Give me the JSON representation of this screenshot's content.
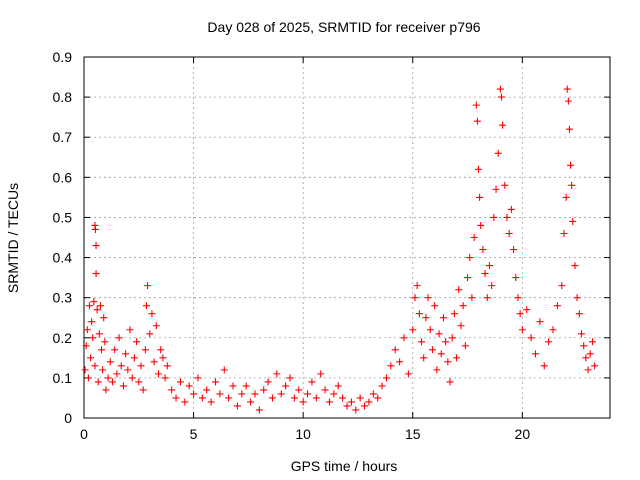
{
  "chart_data": {
    "type": "scatter",
    "title": "Day 028 of 2025, SRMTID for receiver p796",
    "xlabel": "GPS time / hours",
    "ylabel": "SRMTID / TECUs",
    "xlim": [
      0,
      24
    ],
    "ylim": [
      0,
      0.9
    ],
    "x_ticks": [
      0,
      5,
      10,
      15,
      20
    ],
    "x_tick_labels": [
      "0",
      "5",
      "10",
      "15",
      "20"
    ],
    "y_ticks": [
      0,
      0.1,
      0.2,
      0.3,
      0.4,
      0.5,
      0.6,
      0.7,
      0.8,
      0.9
    ],
    "y_tick_labels": [
      "0",
      "0.1",
      "0.2",
      "0.3",
      "0.4",
      "0.5",
      "0.6",
      "0.7",
      "0.8",
      "0.9"
    ],
    "grid": true,
    "marker": "+",
    "color": "#ff0000",
    "series": [
      {
        "name": "SRMTID",
        "points": [
          [
            0.05,
            0.12
          ],
          [
            0.1,
            0.18
          ],
          [
            0.15,
            0.22
          ],
          [
            0.2,
            0.1
          ],
          [
            0.25,
            0.28
          ],
          [
            0.3,
            0.15
          ],
          [
            0.35,
            0.24
          ],
          [
            0.4,
            0.2
          ],
          [
            0.45,
            0.29
          ],
          [
            0.5,
            0.13
          ],
          [
            0.5,
            0.48
          ],
          [
            0.52,
            0.47
          ],
          [
            0.55,
            0.43
          ],
          [
            0.55,
            0.36
          ],
          [
            0.6,
            0.27
          ],
          [
            0.65,
            0.09
          ],
          [
            0.7,
            0.21
          ],
          [
            0.75,
            0.28
          ],
          [
            0.8,
            0.17
          ],
          [
            0.85,
            0.12
          ],
          [
            0.9,
            0.25
          ],
          [
            0.95,
            0.19
          ],
          [
            1.0,
            0.07
          ],
          [
            1.1,
            0.1
          ],
          [
            1.2,
            0.14
          ],
          [
            1.3,
            0.09
          ],
          [
            1.4,
            0.17
          ],
          [
            1.5,
            0.11
          ],
          [
            1.6,
            0.2
          ],
          [
            1.7,
            0.13
          ],
          [
            1.8,
            0.08
          ],
          [
            1.9,
            0.16
          ],
          [
            2.0,
            0.12
          ],
          [
            2.1,
            0.22
          ],
          [
            2.2,
            0.1
          ],
          [
            2.3,
            0.15
          ],
          [
            2.4,
            0.19
          ],
          [
            2.5,
            0.09
          ],
          [
            2.6,
            0.13
          ],
          [
            2.7,
            0.07
          ],
          [
            2.8,
            0.17
          ],
          [
            2.85,
            0.28
          ],
          [
            2.9,
            0.33
          ],
          [
            3.0,
            0.21
          ],
          [
            3.1,
            0.26
          ],
          [
            3.2,
            0.14
          ],
          [
            3.3,
            0.23
          ],
          [
            3.4,
            0.11
          ],
          [
            3.5,
            0.17
          ],
          [
            3.6,
            0.15
          ],
          [
            3.7,
            0.1
          ],
          [
            3.8,
            0.13
          ],
          [
            4.0,
            0.07
          ],
          [
            4.2,
            0.05
          ],
          [
            4.4,
            0.09
          ],
          [
            4.6,
            0.04
          ],
          [
            4.8,
            0.08
          ],
          [
            5.0,
            0.06
          ],
          [
            5.2,
            0.1
          ],
          [
            5.4,
            0.05
          ],
          [
            5.6,
            0.07
          ],
          [
            5.8,
            0.04
          ],
          [
            6.0,
            0.09
          ],
          [
            6.2,
            0.06
          ],
          [
            6.4,
            0.12
          ],
          [
            6.6,
            0.05
          ],
          [
            6.8,
            0.08
          ],
          [
            7.0,
            0.03
          ],
          [
            7.2,
            0.06
          ],
          [
            7.4,
            0.08
          ],
          [
            7.6,
            0.04
          ],
          [
            7.8,
            0.06
          ],
          [
            8.0,
            0.02
          ],
          [
            8.2,
            0.07
          ],
          [
            8.4,
            0.09
          ],
          [
            8.6,
            0.05
          ],
          [
            8.8,
            0.11
          ],
          [
            9.0,
            0.06
          ],
          [
            9.2,
            0.08
          ],
          [
            9.4,
            0.1
          ],
          [
            9.6,
            0.05
          ],
          [
            9.8,
            0.07
          ],
          [
            10.0,
            0.04
          ],
          [
            10.2,
            0.06
          ],
          [
            10.4,
            0.09
          ],
          [
            10.6,
            0.05
          ],
          [
            10.8,
            0.11
          ],
          [
            11.0,
            0.07
          ],
          [
            11.2,
            0.04
          ],
          [
            11.4,
            0.06
          ],
          [
            11.6,
            0.08
          ],
          [
            11.8,
            0.05
          ],
          [
            12.0,
            0.03
          ],
          [
            12.2,
            0.04
          ],
          [
            12.4,
            0.02
          ],
          [
            12.6,
            0.05
          ],
          [
            12.8,
            0.03
          ],
          [
            13.0,
            0.04
          ],
          [
            13.2,
            0.06
          ],
          [
            13.4,
            0.05
          ],
          [
            13.6,
            0.08
          ],
          [
            13.8,
            0.1
          ],
          [
            14.0,
            0.13
          ],
          [
            14.2,
            0.17
          ],
          [
            14.4,
            0.14
          ],
          [
            14.6,
            0.2
          ],
          [
            14.8,
            0.11
          ],
          [
            15.0,
            0.22
          ],
          [
            15.1,
            0.3
          ],
          [
            15.2,
            0.33
          ],
          [
            15.3,
            0.26
          ],
          [
            15.4,
            0.19
          ],
          [
            15.5,
            0.15
          ],
          [
            15.6,
            0.25
          ],
          [
            15.7,
            0.3
          ],
          [
            15.8,
            0.22
          ],
          [
            15.9,
            0.17
          ],
          [
            16.0,
            0.28
          ],
          [
            16.1,
            0.12
          ],
          [
            16.2,
            0.21
          ],
          [
            16.3,
            0.16
          ],
          [
            16.4,
            0.25
          ],
          [
            16.5,
            0.19
          ],
          [
            16.6,
            0.14
          ],
          [
            16.7,
            0.09
          ],
          [
            16.8,
            0.2
          ],
          [
            16.9,
            0.26
          ],
          [
            17.0,
            0.15
          ],
          [
            17.1,
            0.32
          ],
          [
            17.2,
            0.23
          ],
          [
            17.3,
            0.28
          ],
          [
            17.4,
            0.18
          ],
          [
            17.5,
            0.35
          ],
          [
            17.6,
            0.4
          ],
          [
            17.7,
            0.3
          ],
          [
            17.8,
            0.45
          ],
          [
            17.9,
            0.78
          ],
          [
            17.95,
            0.74
          ],
          [
            18.0,
            0.62
          ],
          [
            18.05,
            0.55
          ],
          [
            18.1,
            0.48
          ],
          [
            18.2,
            0.42
          ],
          [
            18.3,
            0.36
          ],
          [
            18.4,
            0.3
          ],
          [
            18.5,
            0.38
          ],
          [
            18.6,
            0.33
          ],
          [
            18.7,
            0.5
          ],
          [
            18.8,
            0.57
          ],
          [
            18.9,
            0.66
          ],
          [
            19.0,
            0.82
          ],
          [
            19.05,
            0.8
          ],
          [
            19.1,
            0.73
          ],
          [
            19.2,
            0.58
          ],
          [
            19.3,
            0.5
          ],
          [
            19.4,
            0.46
          ],
          [
            19.5,
            0.52
          ],
          [
            19.6,
            0.42
          ],
          [
            19.7,
            0.35
          ],
          [
            19.8,
            0.3
          ],
          [
            19.9,
            0.26
          ],
          [
            20.0,
            0.22
          ],
          [
            20.2,
            0.27
          ],
          [
            20.4,
            0.2
          ],
          [
            20.6,
            0.16
          ],
          [
            20.8,
            0.24
          ],
          [
            21.0,
            0.13
          ],
          [
            21.2,
            0.19
          ],
          [
            21.4,
            0.22
          ],
          [
            21.6,
            0.28
          ],
          [
            21.8,
            0.33
          ],
          [
            21.9,
            0.46
          ],
          [
            22.0,
            0.55
          ],
          [
            22.05,
            0.82
          ],
          [
            22.1,
            0.79
          ],
          [
            22.15,
            0.72
          ],
          [
            22.2,
            0.63
          ],
          [
            22.25,
            0.58
          ],
          [
            22.3,
            0.49
          ],
          [
            22.4,
            0.38
          ],
          [
            22.5,
            0.3
          ],
          [
            22.6,
            0.26
          ],
          [
            22.7,
            0.21
          ],
          [
            22.8,
            0.18
          ],
          [
            22.9,
            0.15
          ],
          [
            23.0,
            0.12
          ],
          [
            23.1,
            0.16
          ],
          [
            23.2,
            0.19
          ],
          [
            23.3,
            0.13
          ]
        ]
      }
    ]
  }
}
